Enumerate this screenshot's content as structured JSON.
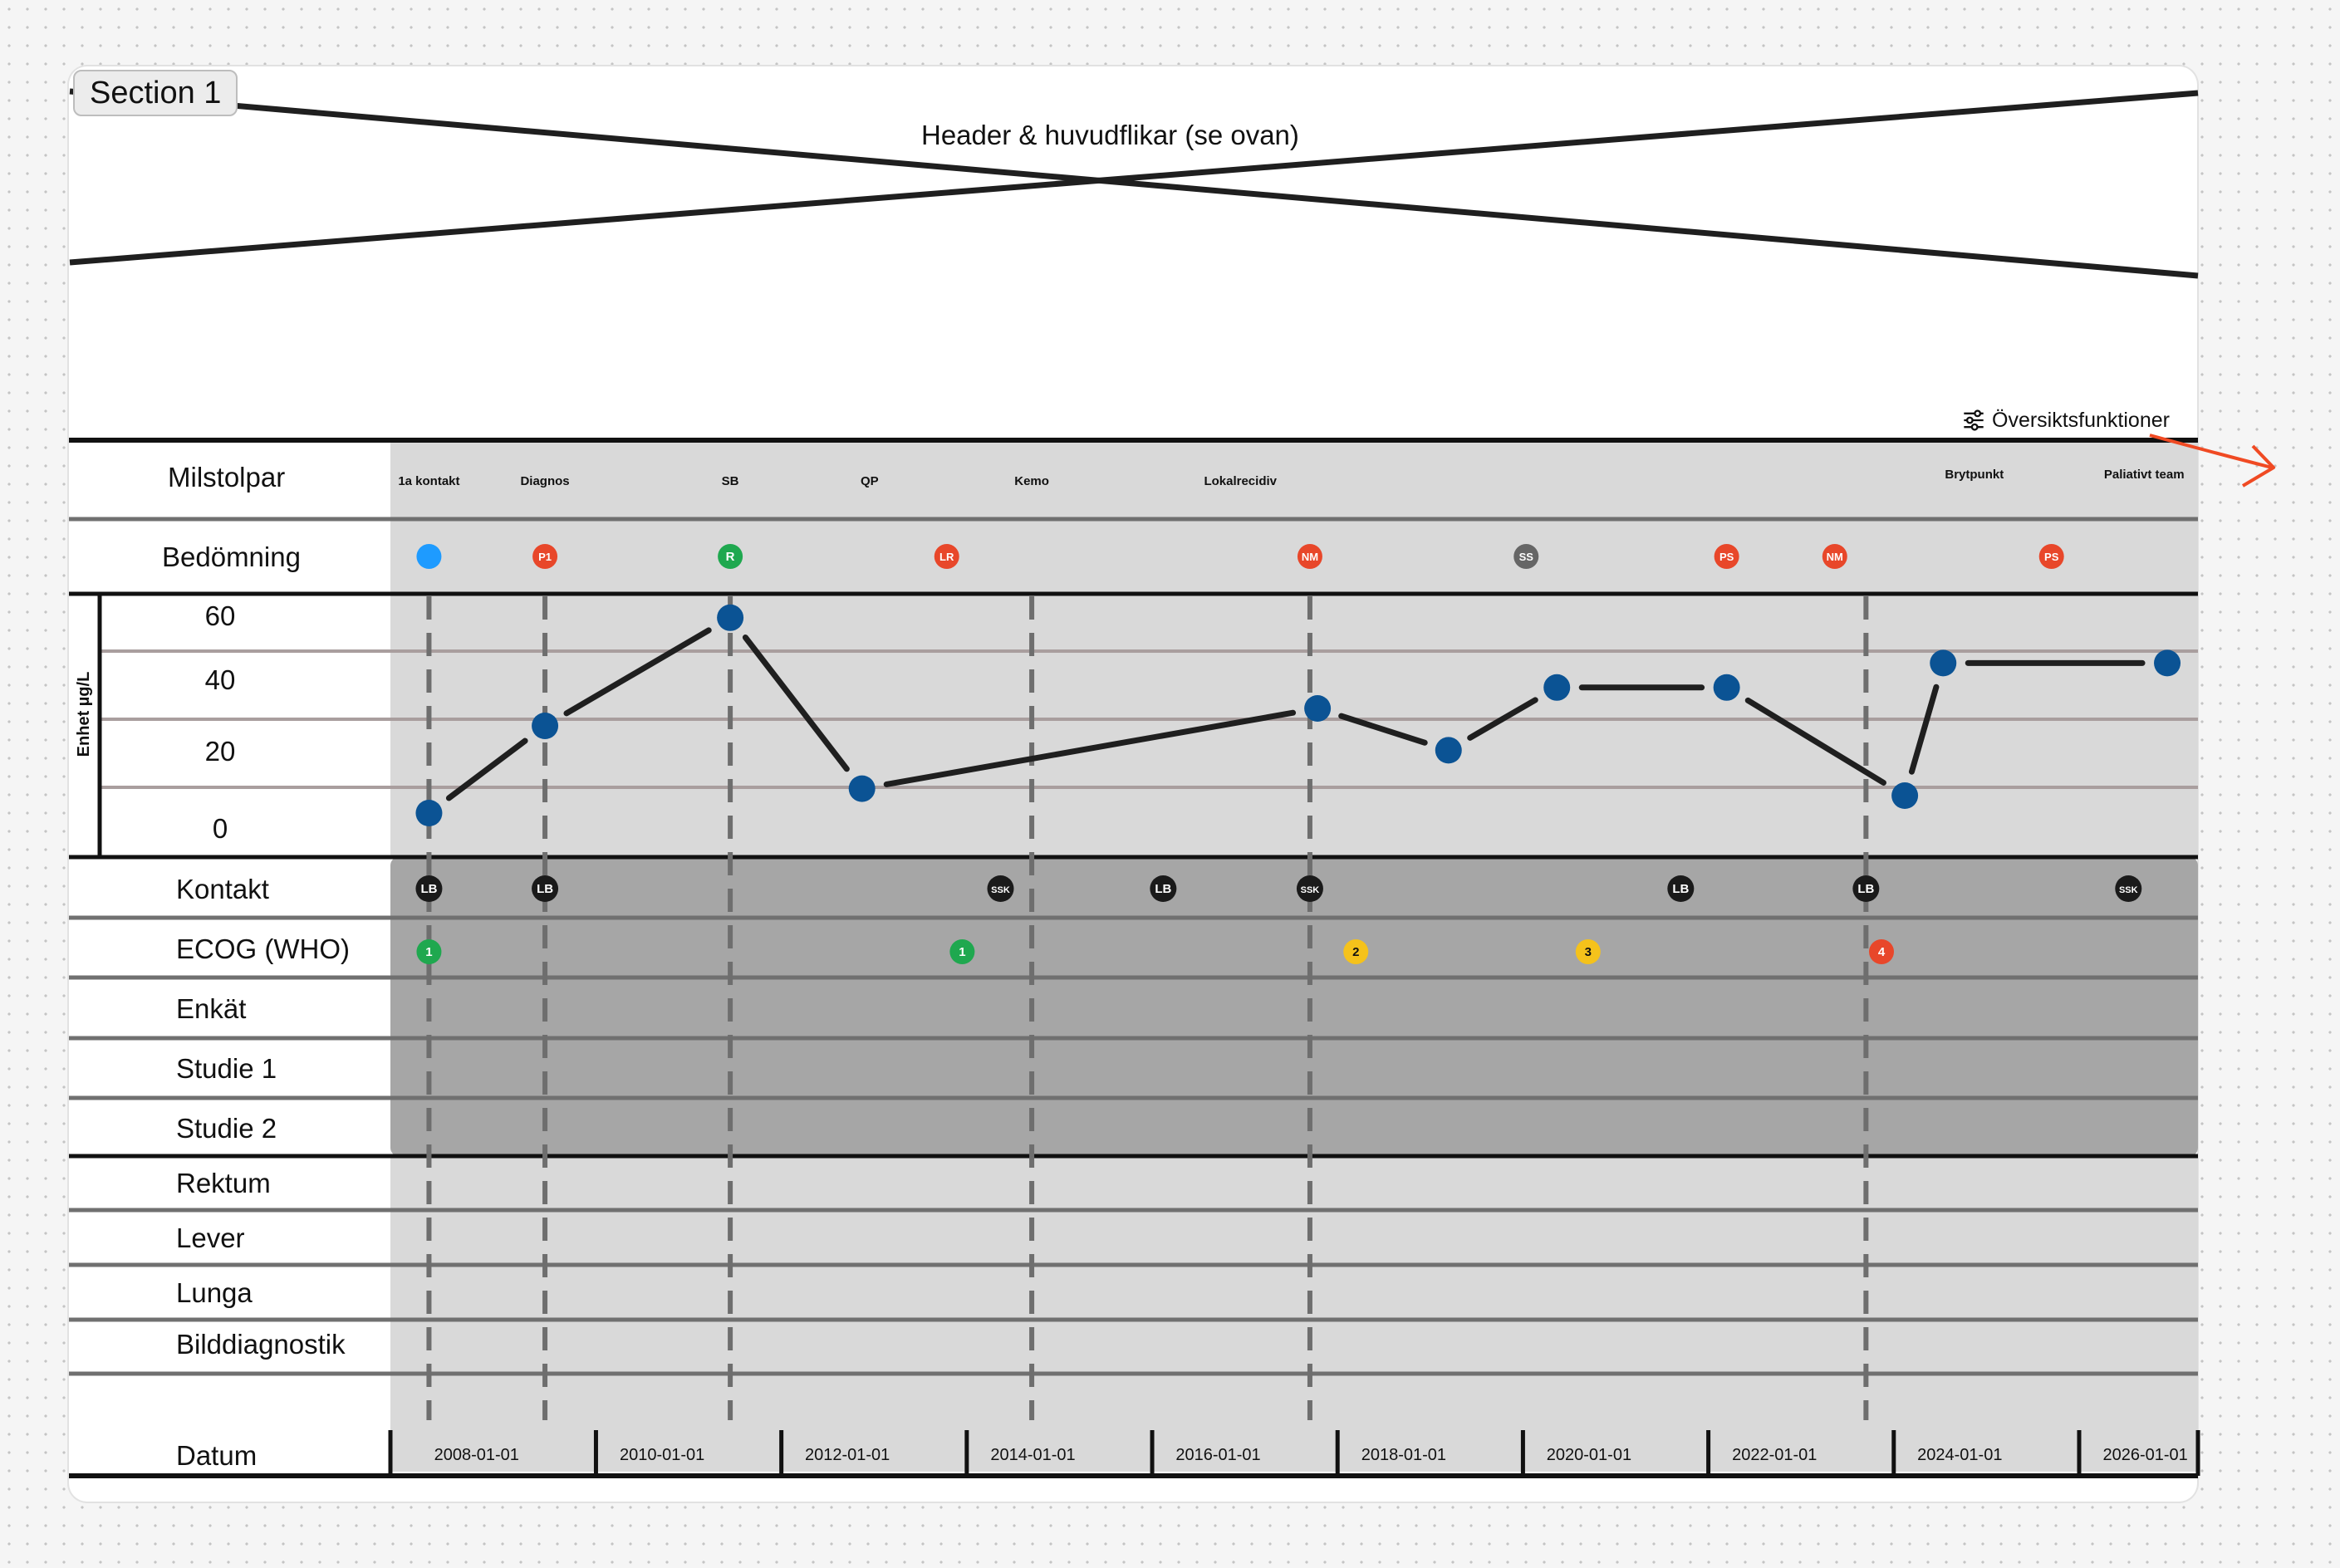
{
  "section_label": "Section 1",
  "header_placeholder": "Header & huvudflikar (se ovan)",
  "overview_button": {
    "label": "Översiktsfunktioner",
    "icon": "sliders-icon"
  },
  "arrow_icon": "arrow-right-icon",
  "colors": {
    "panel_light": "#d9d9d9",
    "panel_dark": "#a6a6a6",
    "marker_blue": "#0b5394",
    "badge_red": "#e8472a",
    "badge_green": "#1fa84f",
    "badge_yellow": "#f5c21b",
    "badge_grey": "#666666",
    "badge_black": "#1a1a1a",
    "badge_lightblue": "#1e9bff",
    "arrow": "#f04a23"
  },
  "rows": {
    "milstolpar": "Milstolpar",
    "bedomning": "Bedömning",
    "kontakt": "Kontakt",
    "ecog": "ECOG (WHO)",
    "enkat": "Enkät",
    "studie1": "Studie 1",
    "studie2": "Studie 2",
    "rektum": "Rektum",
    "lever": "Lever",
    "lunga": "Lunga",
    "bilddiagnostik": "Bilddiagnostik",
    "datum": "Datum"
  },
  "milestones": [
    {
      "label": "1a kontakt",
      "date": "2008-03-01"
    },
    {
      "label": "Diagnos",
      "date": "2009-06-01"
    },
    {
      "label": "SB",
      "date": "2011-06-01"
    },
    {
      "label": "QP",
      "date": "2012-12-01"
    },
    {
      "label": "Kemo",
      "date": "2014-09-01"
    },
    {
      "label": "Lokalrecidiv",
      "date": "2016-12-01"
    },
    {
      "label": "Brytpunkt",
      "date": "2024-11-01"
    },
    {
      "label": "Paliativt team",
      "date": "2026-09-01"
    }
  ],
  "milestone_lines": [
    "2008-03-01",
    "2009-06-01",
    "2011-06-01",
    "2014-09-01",
    "2017-09-01",
    "2023-09-01"
  ],
  "assessments": [
    {
      "label": "",
      "color": "badge_lightblue",
      "date": "2008-03-01"
    },
    {
      "label": "P1",
      "color": "badge_red",
      "date": "2009-06-01"
    },
    {
      "label": "R",
      "color": "badge_green",
      "date": "2011-06-01"
    },
    {
      "label": "LR",
      "color": "badge_red",
      "date": "2013-10-01"
    },
    {
      "label": "NM",
      "color": "badge_red",
      "date": "2017-09-01"
    },
    {
      "label": "SS",
      "color": "badge_grey",
      "date": "2020-01-01"
    },
    {
      "label": "PS",
      "color": "badge_red",
      "date": "2022-03-01"
    },
    {
      "label": "NM",
      "color": "badge_red",
      "date": "2023-05-01"
    },
    {
      "label": "PS",
      "color": "badge_red",
      "date": "2025-09-01"
    }
  ],
  "contacts": [
    {
      "label": "LB",
      "date": "2008-03-01"
    },
    {
      "label": "LB",
      "date": "2009-06-01"
    },
    {
      "label": "SSK",
      "date": "2014-05-01"
    },
    {
      "label": "LB",
      "date": "2016-02-01"
    },
    {
      "label": "SSK",
      "date": "2017-09-01"
    },
    {
      "label": "LB",
      "date": "2021-09-01"
    },
    {
      "label": "LB",
      "date": "2023-09-01"
    },
    {
      "label": "SSK",
      "date": "2026-07-01"
    }
  ],
  "ecog": [
    {
      "label": "1",
      "color": "badge_green",
      "date": "2008-03-01"
    },
    {
      "label": "1",
      "color": "badge_green",
      "date": "2013-12-01"
    },
    {
      "label": "2",
      "color": "badge_yellow",
      "date": "2018-03-01"
    },
    {
      "label": "3",
      "color": "badge_yellow",
      "date": "2020-09-01"
    },
    {
      "label": "4",
      "color": "badge_red",
      "date": "2023-11-01"
    }
  ],
  "chart_data": {
    "type": "line",
    "ylabel": "Enhet µg/L",
    "yticks": [
      60,
      40,
      20,
      0
    ],
    "ylim": [
      0,
      60
    ],
    "x": [
      "2008-03-01",
      "2009-06-01",
      "2011-06-01",
      "2012-11-01",
      "2017-10-01",
      "2019-03-01",
      "2020-05-01",
      "2022-03-01",
      "2024-02-01",
      "2024-07-01",
      "2026-12-01"
    ],
    "values": [
      5,
      30,
      61,
      12,
      35,
      23,
      41,
      41,
      10,
      48,
      48
    ],
    "xticks": [
      "2008-01-01",
      "2010-01-01",
      "2012-01-01",
      "2014-01-01",
      "2016-01-01",
      "2018-01-01",
      "2020-01-01",
      "2022-01-01",
      "2024-01-01",
      "2026-01-01"
    ]
  }
}
